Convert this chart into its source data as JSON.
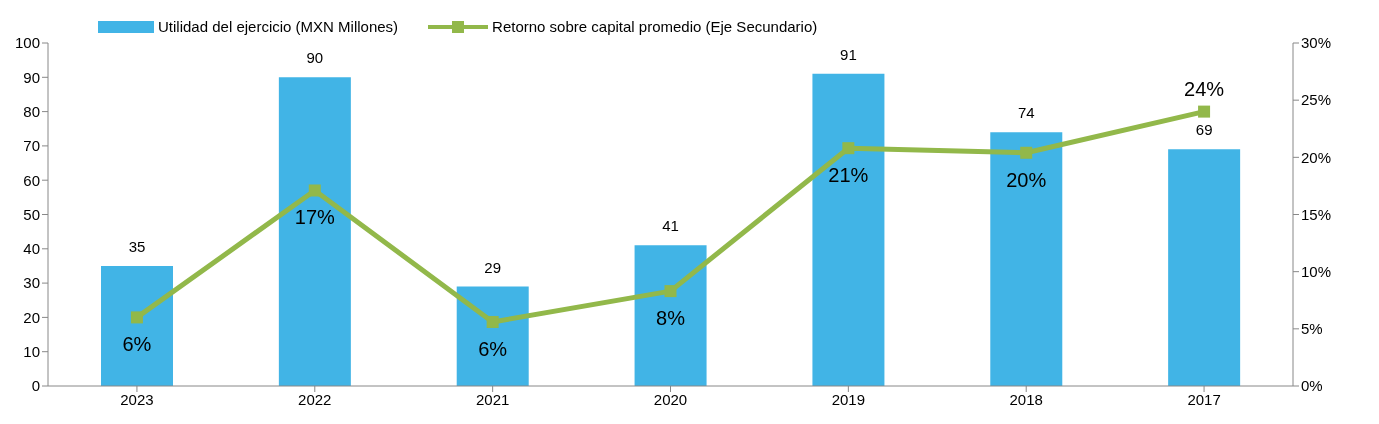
{
  "chart_data": {
    "type": "bar",
    "categories": [
      "2023",
      "2022",
      "2021",
      "2020",
      "2019",
      "2018",
      "2017"
    ],
    "series": [
      {
        "name": "Utilidad del ejercicio (MXN Millones)",
        "color": "#41b4e6",
        "values": [
          35,
          90,
          29,
          41,
          91,
          74,
          69
        ],
        "value_labels": [
          "35",
          "90",
          "29",
          "41",
          "91",
          "74",
          "69"
        ]
      },
      {
        "name": "Retorno sobre capital promedio (Eje Secundario)",
        "type": "line",
        "axis": "y2",
        "color": "#92b84a",
        "marker": "square",
        "values": [
          6,
          17.1,
          5.6,
          8.3,
          20.8,
          20.4,
          24
        ],
        "value_labels": [
          "6%",
          "17%",
          "6%",
          "8%",
          "21%",
          "20%",
          "24%"
        ]
      }
    ],
    "ylim": [
      0,
      100
    ],
    "yticks": [
      0,
      10,
      20,
      30,
      40,
      50,
      60,
      70,
      80,
      90,
      100
    ],
    "y2lim": [
      0,
      30
    ],
    "y2ticks": [
      {
        "value": 0,
        "label": "0%"
      },
      {
        "value": 5,
        "label": "5%"
      },
      {
        "value": 10,
        "label": "10%"
      },
      {
        "value": 15,
        "label": "15%"
      },
      {
        "value": 20,
        "label": "20%"
      },
      {
        "value": 25,
        "label": "25%"
      },
      {
        "value": 30,
        "label": "30%"
      }
    ],
    "grid": false,
    "legend": "top"
  }
}
